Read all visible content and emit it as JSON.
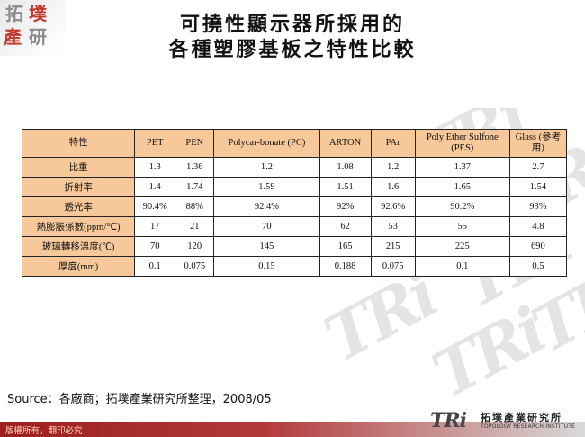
{
  "logo": {
    "chars": [
      "拓",
      "墣",
      "產",
      "研"
    ]
  },
  "title": {
    "line1": "可撓性顯示器所採用的",
    "line2": "各種塑膠基板之特性比較"
  },
  "table": {
    "headers": [
      "特性",
      "PET",
      "PEN",
      "Polycar-bonate (PC)",
      "ARTON",
      "PAr",
      "Poly Ether Sulfone (PES)",
      "Glass (參考用)"
    ],
    "rows": [
      {
        "label": "比重",
        "values": [
          "1.3",
          "1.36",
          "1.2",
          "1.08",
          "1.2",
          "1.37",
          "2.7"
        ]
      },
      {
        "label": "折射率",
        "values": [
          "1.4",
          "1.74",
          "1.59",
          "1.51",
          "1.6",
          "1.65",
          "1.54"
        ]
      },
      {
        "label": "透光率",
        "values": [
          "90.4%",
          "88%",
          "92.4%",
          "92%",
          "92.6%",
          "90.2%",
          "93%"
        ]
      },
      {
        "label": "熱膨脹係數(ppm/℃)",
        "values": [
          "17",
          "21",
          "70",
          "62",
          "53",
          "55",
          "4.8"
        ]
      },
      {
        "label": "玻璃轉移溫度(℃)",
        "values": [
          "70",
          "120",
          "145",
          "165",
          "215",
          "225",
          "690"
        ]
      },
      {
        "label": "厚度(mm)",
        "values": [
          "0.1",
          "0.075",
          "0.15",
          "0.188",
          "0.075",
          "0.1",
          "0.5"
        ]
      }
    ]
  },
  "source": "Source：各廠商；拓墣產業研究所整理，2008/05",
  "footer": {
    "copyright": "版權所有，翻印必究",
    "brand_mark": "TRi",
    "brand_cn": "拓墣產業研究所",
    "brand_en": "TOPOLOGY RESEARCH INSTITUTE"
  },
  "colors": {
    "header_fill": "#f7c99a",
    "footer_red": "#9c1f1f",
    "accent_red": "#c0392b"
  }
}
